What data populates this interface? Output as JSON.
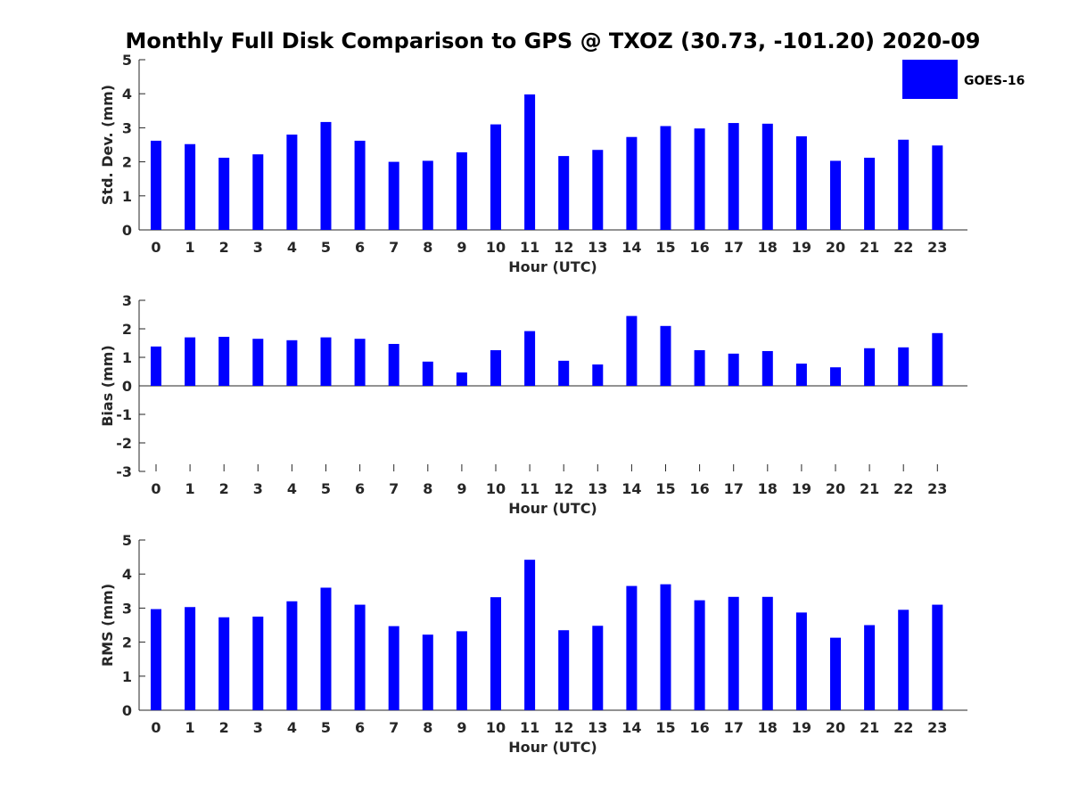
{
  "chart_data": [
    {
      "type": "bar",
      "title": "Monthly Full Disk Comparison to GPS @ TXOZ (30.73, -101.20) 2020-09",
      "xlabel": "Hour (UTC)",
      "ylabel": "Std. Dev. (mm)",
      "categories": [
        "0",
        "1",
        "2",
        "3",
        "4",
        "5",
        "6",
        "7",
        "8",
        "9",
        "10",
        "11",
        "12",
        "13",
        "14",
        "15",
        "16",
        "17",
        "18",
        "19",
        "20",
        "21",
        "22",
        "23"
      ],
      "series": [
        {
          "name": "GOES-16",
          "color": "#0000ff",
          "values": [
            2.62,
            2.52,
            2.12,
            2.22,
            2.8,
            3.17,
            2.62,
            2.0,
            2.03,
            2.28,
            3.1,
            3.98,
            2.17,
            2.35,
            2.73,
            3.05,
            2.98,
            3.14,
            3.12,
            2.75,
            2.03,
            2.12,
            2.65,
            2.48
          ]
        }
      ],
      "ylim": [
        0,
        5
      ],
      "yticks": [
        "0",
        "1",
        "2",
        "3",
        "4",
        "5"
      ],
      "legend": "top-right"
    },
    {
      "type": "bar",
      "xlabel": "Hour (UTC)",
      "ylabel": "Bias (mm)",
      "categories": [
        "0",
        "1",
        "2",
        "3",
        "4",
        "5",
        "6",
        "7",
        "8",
        "9",
        "10",
        "11",
        "12",
        "13",
        "14",
        "15",
        "16",
        "17",
        "18",
        "19",
        "20",
        "21",
        "22",
        "23"
      ],
      "series": [
        {
          "name": "GOES-16",
          "color": "#0000ff",
          "values": [
            1.38,
            1.7,
            1.72,
            1.65,
            1.6,
            1.7,
            1.65,
            1.47,
            0.85,
            0.47,
            1.25,
            1.92,
            0.88,
            0.75,
            2.45,
            2.1,
            1.25,
            1.13,
            1.22,
            0.78,
            0.65,
            1.32,
            1.35,
            1.85
          ]
        }
      ],
      "ylim": [
        -3,
        3
      ],
      "yticks": [
        "-3",
        "-2",
        "-1",
        "0",
        "1",
        "2",
        "3"
      ]
    },
    {
      "type": "bar",
      "xlabel": "Hour (UTC)",
      "ylabel": "RMS (mm)",
      "categories": [
        "0",
        "1",
        "2",
        "3",
        "4",
        "5",
        "6",
        "7",
        "8",
        "9",
        "10",
        "11",
        "12",
        "13",
        "14",
        "15",
        "16",
        "17",
        "18",
        "19",
        "20",
        "21",
        "22",
        "23"
      ],
      "series": [
        {
          "name": "GOES-16",
          "color": "#0000ff",
          "values": [
            2.97,
            3.03,
            2.73,
            2.75,
            3.2,
            3.6,
            3.1,
            2.47,
            2.22,
            2.32,
            3.32,
            4.42,
            2.35,
            2.48,
            3.65,
            3.7,
            3.23,
            3.33,
            3.33,
            2.87,
            2.13,
            2.5,
            2.95,
            3.1
          ]
        }
      ],
      "ylim": [
        0,
        5
      ],
      "yticks": [
        "0",
        "1",
        "2",
        "3",
        "4",
        "5"
      ]
    }
  ]
}
